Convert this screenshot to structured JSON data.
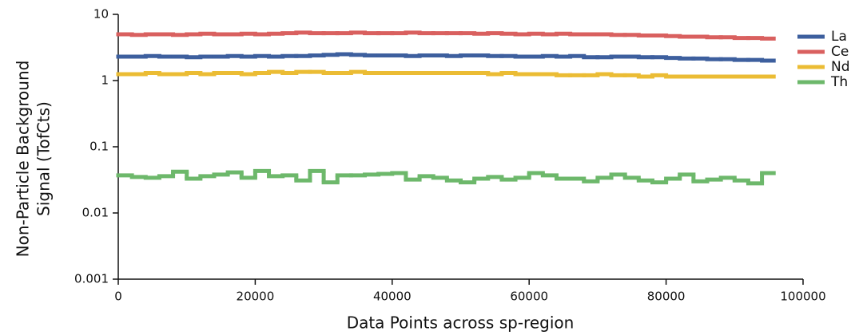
{
  "chart_data": {
    "type": "step",
    "ylabel": [
      "Non-Particle Background",
      "Signal (TofCts)"
    ],
    "xlabel": "Data Points across sp-region",
    "log_y": true,
    "grid": false,
    "legend": "right",
    "xlim": [
      0,
      100000
    ],
    "xticks": [
      0,
      20000,
      40000,
      60000,
      80000,
      100000
    ],
    "ylim": [
      0.001,
      10
    ],
    "yticks": [
      0.001,
      0.01,
      0.1,
      1,
      10
    ],
    "x": [
      0,
      2000,
      4000,
      6000,
      8000,
      10000,
      12000,
      14000,
      16000,
      18000,
      20000,
      22000,
      24000,
      26000,
      28000,
      30000,
      32000,
      34000,
      36000,
      38000,
      40000,
      42000,
      44000,
      46000,
      48000,
      50000,
      52000,
      54000,
      56000,
      58000,
      60000,
      62000,
      64000,
      66000,
      68000,
      70000,
      72000,
      74000,
      76000,
      78000,
      80000,
      82000,
      84000,
      86000,
      88000,
      90000,
      92000,
      94000
    ],
    "series": [
      {
        "name": "La",
        "color": "#3d5f9e",
        "values": [
          2.3,
          2.3,
          2.35,
          2.3,
          2.3,
          2.25,
          2.3,
          2.3,
          2.35,
          2.3,
          2.35,
          2.3,
          2.35,
          2.35,
          2.4,
          2.45,
          2.5,
          2.45,
          2.4,
          2.4,
          2.4,
          2.35,
          2.4,
          2.4,
          2.35,
          2.4,
          2.4,
          2.35,
          2.35,
          2.3,
          2.3,
          2.35,
          2.3,
          2.35,
          2.25,
          2.25,
          2.3,
          2.3,
          2.25,
          2.25,
          2.2,
          2.15,
          2.15,
          2.1,
          2.1,
          2.05,
          2.05,
          2.0
        ]
      },
      {
        "name": "Ce",
        "color": "#d9605f",
        "values": [
          5.0,
          4.9,
          5.0,
          5.0,
          4.9,
          5.0,
          5.1,
          5.0,
          5.0,
          5.1,
          5.0,
          5.1,
          5.2,
          5.3,
          5.2,
          5.2,
          5.2,
          5.3,
          5.2,
          5.2,
          5.2,
          5.3,
          5.2,
          5.2,
          5.2,
          5.2,
          5.1,
          5.2,
          5.1,
          5.0,
          5.1,
          5.0,
          5.1,
          5.0,
          5.0,
          5.0,
          4.9,
          4.9,
          4.8,
          4.8,
          4.7,
          4.6,
          4.6,
          4.5,
          4.5,
          4.4,
          4.4,
          4.3
        ]
      },
      {
        "name": "Nd",
        "color": "#ebbc34",
        "values": [
          1.25,
          1.25,
          1.3,
          1.25,
          1.25,
          1.3,
          1.25,
          1.3,
          1.3,
          1.25,
          1.3,
          1.35,
          1.3,
          1.35,
          1.35,
          1.3,
          1.3,
          1.35,
          1.3,
          1.3,
          1.3,
          1.3,
          1.3,
          1.3,
          1.3,
          1.3,
          1.3,
          1.25,
          1.3,
          1.25,
          1.25,
          1.25,
          1.2,
          1.2,
          1.2,
          1.25,
          1.2,
          1.2,
          1.15,
          1.2,
          1.15,
          1.15,
          1.15,
          1.15,
          1.15,
          1.15,
          1.15,
          1.15
        ]
      },
      {
        "name": "Th",
        "color": "#6db86b",
        "values": [
          0.037,
          0.035,
          0.034,
          0.036,
          0.042,
          0.033,
          0.036,
          0.038,
          0.041,
          0.034,
          0.043,
          0.036,
          0.037,
          0.031,
          0.043,
          0.029,
          0.037,
          0.037,
          0.038,
          0.039,
          0.04,
          0.032,
          0.036,
          0.034,
          0.031,
          0.029,
          0.033,
          0.035,
          0.032,
          0.034,
          0.04,
          0.037,
          0.033,
          0.033,
          0.03,
          0.034,
          0.038,
          0.034,
          0.031,
          0.029,
          0.033,
          0.038,
          0.03,
          0.032,
          0.034,
          0.031,
          0.028,
          0.04
        ]
      }
    ]
  }
}
